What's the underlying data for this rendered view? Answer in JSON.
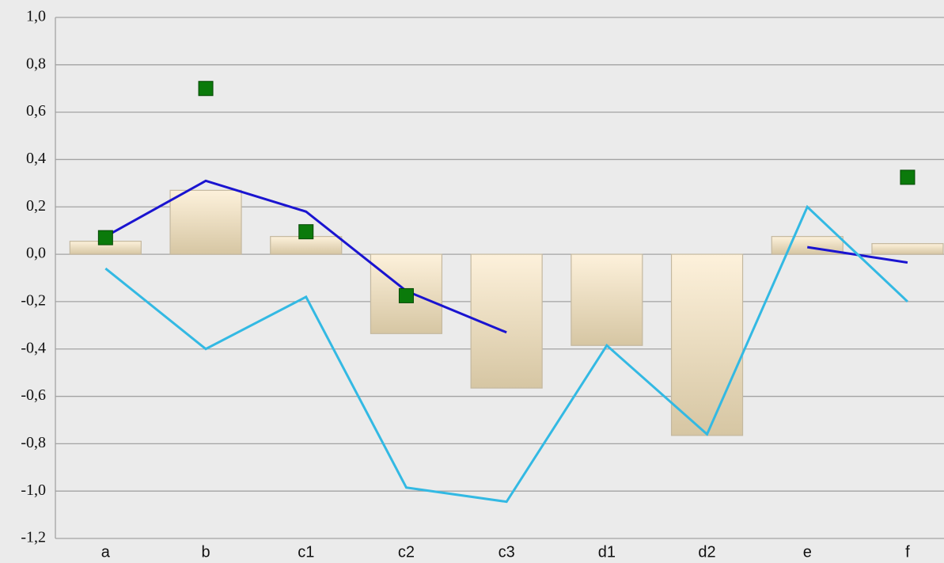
{
  "chart_data": {
    "type": "bar",
    "categories": [
      "a",
      "b",
      "c1",
      "c2",
      "c3",
      "d1",
      "d2",
      "e",
      "f"
    ],
    "ylim": [
      -1.2,
      1.0
    ],
    "yticks": [
      {
        "value": -1.2,
        "label": "-1,2"
      },
      {
        "value": -1.0,
        "label": "-1,0"
      },
      {
        "value": -0.8,
        "label": "-0,8"
      },
      {
        "value": -0.6,
        "label": "-0,6"
      },
      {
        "value": -0.4,
        "label": "-0,4"
      },
      {
        "value": -0.2,
        "label": "-0,2"
      },
      {
        "value": 0,
        "label": "0,0"
      },
      {
        "value": 0.2,
        "label": "0,2"
      },
      {
        "value": 0.4,
        "label": "0,4"
      },
      {
        "value": 0.6,
        "label": "0,6"
      },
      {
        "value": 0.8,
        "label": "0,8"
      },
      {
        "value": 1.0,
        "label": "1,0"
      }
    ],
    "grid": true,
    "series": [
      {
        "type": "bar",
        "color": [
          "#fdf1db",
          "#d6c6a3"
        ],
        "values": [
          0.055,
          0.27,
          0.075,
          -0.335,
          -0.565,
          -0.385,
          -0.765,
          0.075,
          0.045
        ]
      },
      {
        "type": "line",
        "color": "#1a14d0",
        "values": [
          0.075,
          0.31,
          0.18,
          -0.155,
          -0.33,
          null,
          null,
          0.03,
          -0.035
        ]
      },
      {
        "type": "line",
        "color": "#33b9e3",
        "values": [
          -0.06,
          -0.4,
          -0.18,
          -0.985,
          -1.045,
          -0.385,
          -0.76,
          0.2,
          -0.2
        ]
      },
      {
        "type": "scatter",
        "color": "#0b7a0b",
        "values": [
          0.07,
          0.7,
          0.095,
          -0.175,
          null,
          null,
          null,
          null,
          0.325
        ]
      }
    ]
  }
}
